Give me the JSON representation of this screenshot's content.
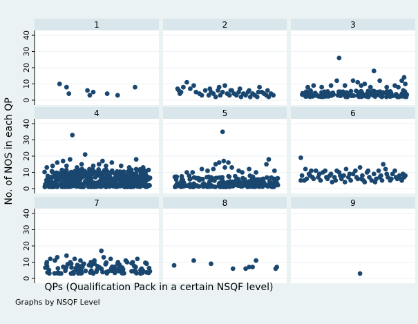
{
  "chart_data": {
    "type": "scatter",
    "ylabel": "No. of NOS in each QP",
    "xlabel": "QPs (Qualification Pack in a certain NSQF level)",
    "note": "Graphs by NSQF Level",
    "ylim": [
      -3,
      43
    ],
    "yticks": [
      0,
      10,
      20,
      30,
      40
    ],
    "grid": true,
    "colors": {
      "background": "#eaf2f3",
      "panel": "#ffffff",
      "strip": "#d9e6eb",
      "grid": "#eaf2f3",
      "marker": "#1a476f",
      "axis": "#000000"
    },
    "panels": [
      {
        "label": "1",
        "points": [
          [
            0.18,
            10
          ],
          [
            0.24,
            8
          ],
          [
            0.26,
            4
          ],
          [
            0.42,
            6
          ],
          [
            0.44,
            3
          ],
          [
            0.47,
            5
          ],
          [
            0.59,
            4
          ],
          [
            0.68,
            3
          ],
          [
            0.83,
            8
          ]
        ]
      },
      {
        "label": "2",
        "points": [
          [
            0.09,
            7
          ],
          [
            0.1,
            6
          ],
          [
            0.11,
            4
          ],
          [
            0.12,
            5
          ],
          [
            0.14,
            8
          ],
          [
            0.17,
            11
          ],
          [
            0.2,
            7
          ],
          [
            0.23,
            9
          ],
          [
            0.25,
            5
          ],
          [
            0.28,
            4
          ],
          [
            0.3,
            3
          ],
          [
            0.33,
            6
          ],
          [
            0.36,
            3
          ],
          [
            0.38,
            5
          ],
          [
            0.4,
            4
          ],
          [
            0.42,
            2
          ],
          [
            0.44,
            6
          ],
          [
            0.46,
            3
          ],
          [
            0.48,
            5
          ],
          [
            0.5,
            9
          ],
          [
            0.52,
            4
          ],
          [
            0.54,
            3
          ],
          [
            0.56,
            6
          ],
          [
            0.58,
            4
          ],
          [
            0.6,
            3
          ],
          [
            0.62,
            5
          ],
          [
            0.64,
            2
          ],
          [
            0.66,
            4
          ],
          [
            0.68,
            3
          ],
          [
            0.7,
            5
          ],
          [
            0.72,
            2
          ],
          [
            0.74,
            4
          ],
          [
            0.76,
            3
          ],
          [
            0.78,
            2
          ],
          [
            0.8,
            8
          ],
          [
            0.82,
            5
          ],
          [
            0.84,
            4
          ],
          [
            0.86,
            3
          ],
          [
            0.88,
            2
          ],
          [
            0.9,
            4
          ],
          [
            0.92,
            3
          ],
          [
            0.37,
            7
          ],
          [
            0.45,
            8
          ],
          [
            0.55,
            6
          ],
          [
            0.63,
            7
          ],
          [
            0.71,
            6
          ],
          [
            0.79,
            5
          ],
          [
            0.87,
            6
          ]
        ]
      },
      {
        "label": "3",
        "band": {
          "x0": 0.06,
          "x1": 0.97,
          "y0": 2,
          "y1": 6,
          "density": 3
        },
        "points": [
          [
            0.38,
            26
          ],
          [
            0.68,
            18
          ],
          [
            0.36,
            12
          ],
          [
            0.5,
            12
          ],
          [
            0.54,
            11
          ],
          [
            0.6,
            10
          ],
          [
            0.73,
            12
          ],
          [
            0.94,
            14
          ],
          [
            0.92,
            12
          ],
          [
            0.11,
            8
          ],
          [
            0.16,
            9
          ],
          [
            0.23,
            8
          ],
          [
            0.31,
            9
          ],
          [
            0.43,
            9
          ],
          [
            0.57,
            9
          ],
          [
            0.65,
            8
          ],
          [
            0.79,
            8
          ],
          [
            0.86,
            9
          ],
          [
            0.95,
            10
          ],
          [
            0.89,
            8
          ]
        ]
      },
      {
        "label": "4",
        "band": {
          "x0": 0.05,
          "x1": 0.96,
          "y0": 1,
          "y1": 12,
          "density": 9
        },
        "points": [
          [
            0.29,
            33
          ],
          [
            0.4,
            21
          ],
          [
            0.27,
            18
          ],
          [
            0.21,
            17
          ],
          [
            0.16,
            16
          ],
          [
            0.55,
            17
          ],
          [
            0.52,
            15
          ],
          [
            0.58,
            14
          ],
          [
            0.84,
            18
          ],
          [
            0.63,
            16
          ],
          [
            0.71,
            14
          ],
          [
            0.37,
            15
          ],
          [
            0.47,
            14
          ],
          [
            0.12,
            14
          ],
          [
            0.33,
            13
          ],
          [
            0.78,
            13
          ],
          [
            0.9,
            13
          ],
          [
            0.07,
            13
          ],
          [
            0.24,
            14
          ]
        ]
      },
      {
        "label": "5",
        "band": {
          "x0": 0.05,
          "x1": 0.96,
          "y0": 1,
          "y1": 8,
          "density": 4
        },
        "points": [
          [
            0.48,
            35
          ],
          [
            0.42,
            15
          ],
          [
            0.45,
            16
          ],
          [
            0.5,
            13
          ],
          [
            0.53,
            16
          ],
          [
            0.49,
            17
          ],
          [
            0.88,
            18
          ],
          [
            0.86,
            15
          ],
          [
            0.71,
            12
          ],
          [
            0.62,
            11
          ],
          [
            0.35,
            11
          ],
          [
            0.22,
            10
          ],
          [
            0.17,
            10
          ],
          [
            0.3,
            12
          ],
          [
            0.56,
            13
          ],
          [
            0.77,
            10
          ],
          [
            0.93,
            11
          ],
          [
            0.4,
            12
          ],
          [
            0.65,
            10
          ]
        ]
      },
      {
        "label": "6",
        "points": [
          [
            0.05,
            19
          ],
          [
            0.06,
            8
          ],
          [
            0.08,
            5
          ],
          [
            0.09,
            12
          ],
          [
            0.12,
            9
          ],
          [
            0.14,
            11
          ],
          [
            0.16,
            6
          ],
          [
            0.18,
            11
          ],
          [
            0.2,
            7
          ],
          [
            0.22,
            5
          ],
          [
            0.24,
            10
          ],
          [
            0.26,
            11
          ],
          [
            0.28,
            6
          ],
          [
            0.3,
            8
          ],
          [
            0.32,
            4
          ],
          [
            0.34,
            7
          ],
          [
            0.36,
            11
          ],
          [
            0.38,
            10
          ],
          [
            0.4,
            6
          ],
          [
            0.42,
            8
          ],
          [
            0.44,
            12
          ],
          [
            0.46,
            7
          ],
          [
            0.48,
            5
          ],
          [
            0.5,
            9
          ],
          [
            0.52,
            11
          ],
          [
            0.54,
            6
          ],
          [
            0.56,
            13
          ],
          [
            0.58,
            8
          ],
          [
            0.6,
            4
          ],
          [
            0.62,
            10
          ],
          [
            0.64,
            7
          ],
          [
            0.66,
            5
          ],
          [
            0.68,
            9
          ],
          [
            0.7,
            6
          ],
          [
            0.72,
            11
          ],
          [
            0.74,
            8
          ],
          [
            0.76,
            15
          ],
          [
            0.78,
            12
          ],
          [
            0.8,
            7
          ],
          [
            0.82,
            5
          ],
          [
            0.84,
            9
          ],
          [
            0.86,
            11
          ],
          [
            0.88,
            6
          ],
          [
            0.9,
            8
          ],
          [
            0.92,
            5
          ],
          [
            0.94,
            7
          ],
          [
            0.1,
            6
          ],
          [
            0.27,
            7
          ],
          [
            0.43,
            4
          ],
          [
            0.59,
            5
          ],
          [
            0.75,
            5
          ],
          [
            0.91,
            6
          ],
          [
            0.15,
            7
          ],
          [
            0.35,
            5
          ],
          [
            0.53,
            7
          ],
          [
            0.69,
            4
          ],
          [
            0.83,
            6
          ],
          [
            0.13,
            8
          ],
          [
            0.31,
            9
          ],
          [
            0.47,
            9
          ],
          [
            0.63,
            11
          ],
          [
            0.79,
            9
          ],
          [
            0.95,
            8
          ],
          [
            0.21,
            9
          ],
          [
            0.39,
            8
          ],
          [
            0.57,
            6
          ],
          [
            0.73,
            7
          ],
          [
            0.87,
            7
          ],
          [
            0.93,
            9
          ],
          [
            0.05,
            5
          ]
        ]
      },
      {
        "label": "7",
        "band": {
          "x0": 0.05,
          "x1": 0.96,
          "y0": 3,
          "y1": 10,
          "density": 2
        },
        "points": [
          [
            0.54,
            17
          ],
          [
            0.14,
            11
          ],
          [
            0.16,
            13
          ],
          [
            0.24,
            14
          ],
          [
            0.1,
            12
          ],
          [
            0.31,
            12
          ],
          [
            0.39,
            9
          ],
          [
            0.45,
            10
          ],
          [
            0.62,
            12
          ],
          [
            0.75,
            11
          ],
          [
            0.85,
            12
          ],
          [
            0.93,
            9
          ],
          [
            0.56,
            13
          ],
          [
            0.68,
            9
          ],
          [
            0.36,
            11
          ],
          [
            0.07,
            10
          ],
          [
            0.28,
            9
          ],
          [
            0.48,
            11
          ],
          [
            0.81,
            10
          ]
        ]
      },
      {
        "label": "8",
        "points": [
          [
            0.06,
            8
          ],
          [
            0.23,
            11
          ],
          [
            0.38,
            9
          ],
          [
            0.57,
            6
          ],
          [
            0.68,
            6
          ],
          [
            0.71,
            7
          ],
          [
            0.74,
            7
          ],
          [
            0.77,
            11
          ],
          [
            0.94,
            6
          ],
          [
            0.95,
            7
          ]
        ]
      },
      {
        "label": "9",
        "points": [
          [
            0.56,
            3
          ]
        ]
      }
    ]
  }
}
